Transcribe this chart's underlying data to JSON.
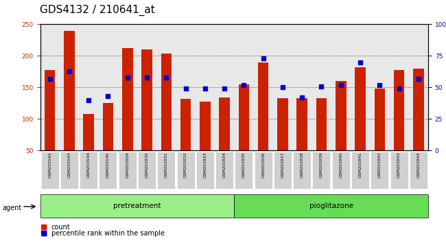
{
  "title": "GDS4132 / 210641_at",
  "samples": [
    "GSM201542",
    "GSM201543",
    "GSM201544",
    "GSM201545",
    "GSM201829",
    "GSM201830",
    "GSM201831",
    "GSM201832",
    "GSM201833",
    "GSM201834",
    "GSM201835",
    "GSM201836",
    "GSM201837",
    "GSM201838",
    "GSM201839",
    "GSM201840",
    "GSM201841",
    "GSM201842",
    "GSM201843",
    "GSM201844"
  ],
  "counts": [
    178,
    240,
    108,
    125,
    212,
    210,
    204,
    132,
    128,
    134,
    155,
    190,
    133,
    133,
    133,
    160,
    182,
    148,
    178,
    180
  ],
  "percentiles": [
    57,
    63,
    40,
    43,
    58,
    58,
    58,
    49,
    49,
    49,
    52,
    73,
    50,
    42,
    51,
    52,
    70,
    52,
    49,
    57
  ],
  "pretreatment_count": 10,
  "pioglitazone_count": 10,
  "ylim_left": [
    50,
    250
  ],
  "ylim_right": [
    0,
    100
  ],
  "yticks_left": [
    50,
    100,
    150,
    200,
    250
  ],
  "yticks_right": [
    0,
    25,
    50,
    75,
    100
  ],
  "ytick_labels_right": [
    "0",
    "25",
    "50",
    "75",
    "100%"
  ],
  "bar_color": "#cc2200",
  "dot_color": "#0000cc",
  "grid_color": "#000000",
  "bg_color": "#cccccc",
  "pretreatment_color": "#99ee88",
  "pioglitazone_color": "#66dd55",
  "agent_label": "agent",
  "legend_count": "count",
  "legend_percentile": "percentile rank within the sample",
  "title_fontsize": 11,
  "label_fontsize": 7,
  "tick_fontsize": 6.5
}
